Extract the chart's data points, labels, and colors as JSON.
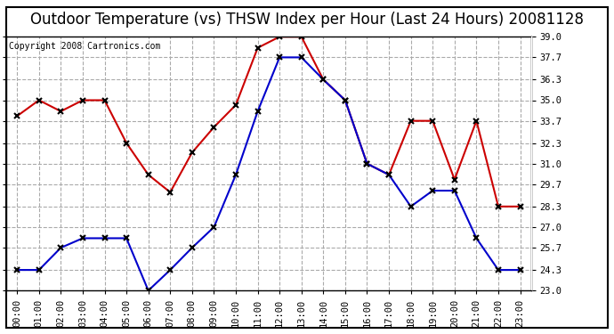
{
  "title": "Outdoor Temperature (vs) THSW Index per Hour (Last 24 Hours) 20081128",
  "copyright": "Copyright 2008 Cartronics.com",
  "hours": [
    "00:00",
    "01:00",
    "02:00",
    "03:00",
    "04:00",
    "05:00",
    "06:00",
    "07:00",
    "08:00",
    "09:00",
    "10:00",
    "11:00",
    "12:00",
    "13:00",
    "14:00",
    "15:00",
    "16:00",
    "17:00",
    "18:00",
    "19:00",
    "20:00",
    "21:00",
    "22:00",
    "23:00"
  ],
  "red_data": [
    34.0,
    35.0,
    34.3,
    35.0,
    35.0,
    32.3,
    30.3,
    29.2,
    31.7,
    33.3,
    34.7,
    38.3,
    39.0,
    39.0,
    36.3,
    35.0,
    31.0,
    30.3,
    33.7,
    33.7,
    30.0,
    33.7,
    28.3,
    28.3
  ],
  "blue_data": [
    24.3,
    24.3,
    25.7,
    26.3,
    26.3,
    26.3,
    23.0,
    24.3,
    25.7,
    27.0,
    30.3,
    34.3,
    37.7,
    37.7,
    36.3,
    35.0,
    31.0,
    30.3,
    28.3,
    29.3,
    29.3,
    26.3,
    24.3,
    24.3
  ],
  "red_color": "#cc0000",
  "blue_color": "#0000cc",
  "marker": "x",
  "marker_color": "#000000",
  "marker_size": 4,
  "marker_linewidth": 1.5,
  "linewidth": 1.5,
  "ylim": [
    23.0,
    39.0
  ],
  "yticks": [
    23.0,
    24.3,
    25.7,
    27.0,
    28.3,
    29.7,
    31.0,
    32.3,
    33.7,
    35.0,
    36.3,
    37.7,
    39.0
  ],
  "grid_color": "#aaaaaa",
  "grid_linestyle": "--",
  "background_color": "#ffffff",
  "title_fontsize": 12,
  "copyright_fontsize": 7,
  "tick_fontsize": 7.5
}
